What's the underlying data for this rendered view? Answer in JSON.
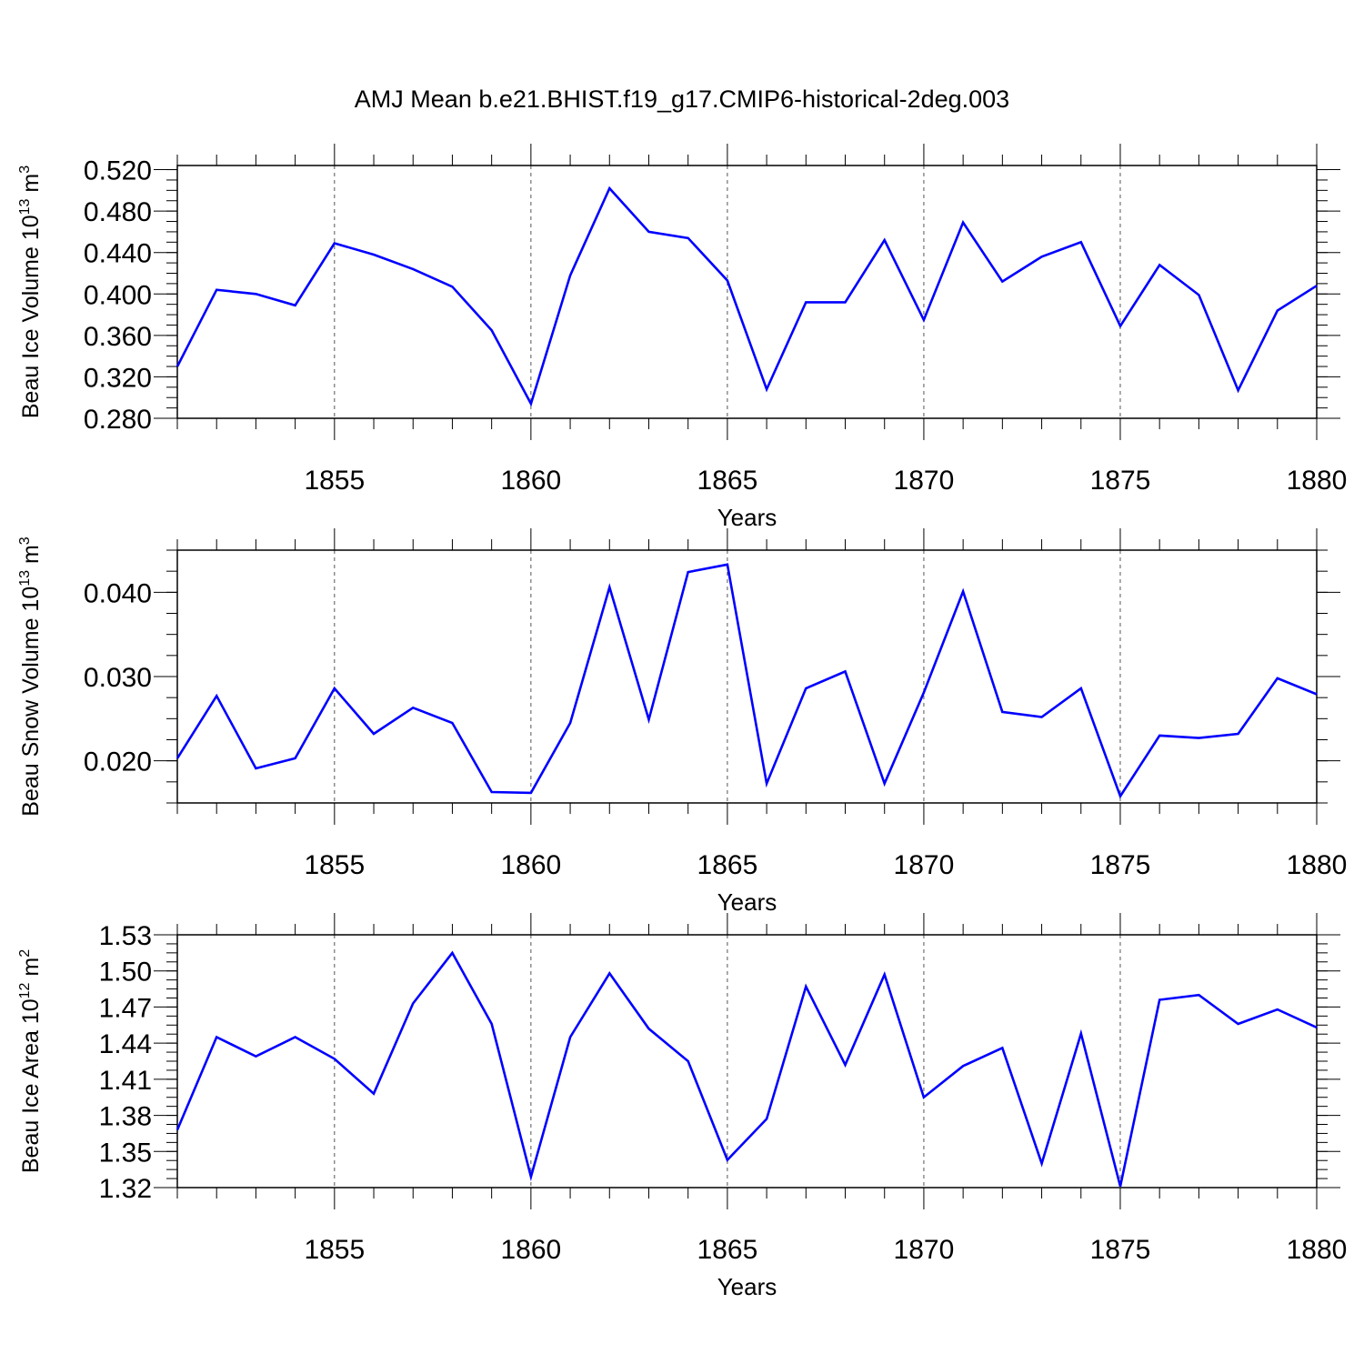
{
  "title": "AMJ Mean b.e21.BHIST.f19_g17.CMIP6-historical-2deg.003",
  "line_color": "#0000ff",
  "chart_data": [
    {
      "type": "line",
      "ylabel_main": "Beau Ice Volume 10",
      "ylabel_exp": "13",
      "ylabel_unit": " m",
      "ylabel_unit_exp": "3",
      "xlabel": "Years",
      "xlim": [
        1851,
        1880
      ],
      "ylim": [
        0.28,
        0.524
      ],
      "ytick_values": [
        0.28,
        0.32,
        0.36,
        0.4,
        0.44,
        0.48,
        0.52
      ],
      "ytick_labels": [
        "0.280",
        "0.320",
        "0.360",
        "0.400",
        "0.440",
        "0.480",
        "0.520"
      ],
      "yminor_step": 0.01,
      "xtick_values": [
        1855,
        1860,
        1865,
        1870,
        1875,
        1880
      ],
      "xtick_labels": [
        "1855",
        "1860",
        "1865",
        "1870",
        "1875",
        "1880"
      ],
      "x": [
        1851,
        1852,
        1853,
        1854,
        1855,
        1856,
        1857,
        1858,
        1859,
        1860,
        1861,
        1862,
        1863,
        1864,
        1865,
        1866,
        1867,
        1868,
        1869,
        1870,
        1871,
        1872,
        1873,
        1874,
        1875,
        1876,
        1877,
        1878,
        1879,
        1880
      ],
      "values": [
        0.33,
        0.404,
        0.4,
        0.389,
        0.449,
        0.438,
        0.424,
        0.407,
        0.365,
        0.294,
        0.418,
        0.502,
        0.46,
        0.454,
        0.413,
        0.308,
        0.392,
        0.392,
        0.452,
        0.375,
        0.469,
        0.412,
        0.436,
        0.45,
        0.369,
        0.428,
        0.399,
        0.307,
        0.384,
        0.408
      ]
    },
    {
      "type": "line",
      "ylabel_main": "Beau Snow Volume 10",
      "ylabel_exp": "13",
      "ylabel_unit": " m",
      "ylabel_unit_exp": "3",
      "xlabel": "Years",
      "xlim": [
        1851,
        1880
      ],
      "ylim": [
        0.015,
        0.045
      ],
      "ytick_values": [
        0.02,
        0.03,
        0.04
      ],
      "ytick_labels": [
        "0.020",
        "0.030",
        "0.040"
      ],
      "yminor_step": 0.0025,
      "xtick_values": [
        1855,
        1860,
        1865,
        1870,
        1875,
        1880
      ],
      "xtick_labels": [
        "1855",
        "1860",
        "1865",
        "1870",
        "1875",
        "1880"
      ],
      "x": [
        1851,
        1852,
        1853,
        1854,
        1855,
        1856,
        1857,
        1858,
        1859,
        1860,
        1861,
        1862,
        1863,
        1864,
        1865,
        1866,
        1867,
        1868,
        1869,
        1870,
        1871,
        1872,
        1873,
        1874,
        1875,
        1876,
        1877,
        1878,
        1879,
        1880
      ],
      "values": [
        0.0203,
        0.0277,
        0.0191,
        0.0203,
        0.0286,
        0.0232,
        0.0263,
        0.0245,
        0.0163,
        0.0162,
        0.0245,
        0.0406,
        0.0249,
        0.0424,
        0.0433,
        0.0173,
        0.0286,
        0.0306,
        0.0173,
        0.0281,
        0.0401,
        0.0258,
        0.0252,
        0.0286,
        0.0158,
        0.023,
        0.0227,
        0.0232,
        0.0298,
        0.0279
      ]
    },
    {
      "type": "line",
      "ylabel_main": "Beau Ice Area 10",
      "ylabel_exp": "12",
      "ylabel_unit": " m",
      "ylabel_unit_exp": "2",
      "xlabel": "Years",
      "xlim": [
        1851,
        1880
      ],
      "ylim": [
        1.32,
        1.53
      ],
      "ytick_values": [
        1.32,
        1.35,
        1.38,
        1.41,
        1.44,
        1.47,
        1.5,
        1.53
      ],
      "ytick_labels": [
        "1.32",
        "1.35",
        "1.38",
        "1.41",
        "1.44",
        "1.47",
        "1.50",
        "1.53"
      ],
      "yminor_step": 0.0075,
      "xtick_values": [
        1855,
        1860,
        1865,
        1870,
        1875,
        1880
      ],
      "xtick_labels": [
        "1855",
        "1860",
        "1865",
        "1870",
        "1875",
        "1880"
      ],
      "x": [
        1851,
        1852,
        1853,
        1854,
        1855,
        1856,
        1857,
        1858,
        1859,
        1860,
        1861,
        1862,
        1863,
        1864,
        1865,
        1866,
        1867,
        1868,
        1869,
        1870,
        1871,
        1872,
        1873,
        1874,
        1875,
        1876,
        1877,
        1878,
        1879,
        1880
      ],
      "values": [
        1.368,
        1.445,
        1.429,
        1.445,
        1.427,
        1.398,
        1.473,
        1.515,
        1.456,
        1.329,
        1.445,
        1.498,
        1.452,
        1.425,
        1.343,
        1.377,
        1.487,
        1.422,
        1.497,
        1.395,
        1.421,
        1.436,
        1.34,
        1.448,
        1.321,
        1.476,
        1.48,
        1.456,
        1.468,
        1.453
      ]
    }
  ]
}
